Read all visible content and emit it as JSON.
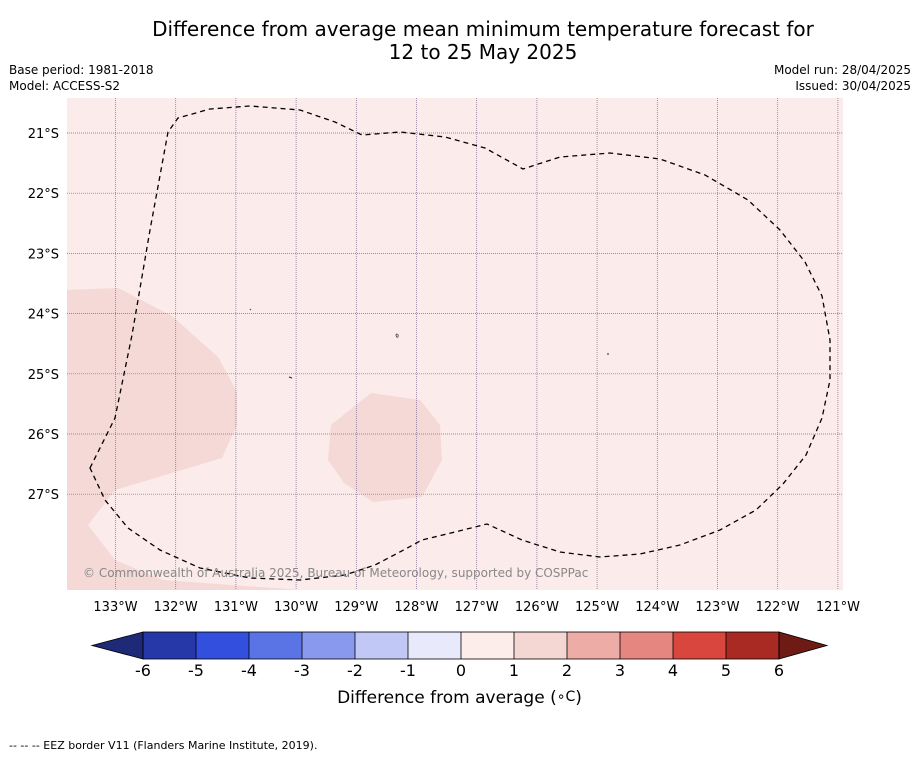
{
  "title": {
    "line1": "Difference from average mean minimum temperature forecast for",
    "line2": "12 to 25 May 2025"
  },
  "meta": {
    "base_period": "Base period: 1981-2018",
    "model": "Model: ACCESS-S2",
    "model_run": "Model run: 28/04/2025",
    "issued": "Issued: 30/04/2025"
  },
  "map": {
    "lat_labels": [
      "21°S",
      "22°S",
      "23°S",
      "24°S",
      "25°S",
      "26°S",
      "27°S"
    ],
    "lon_labels": [
      "133°W",
      "132°W",
      "131°W",
      "130°W",
      "129°W",
      "128°W",
      "127°W",
      "126°W",
      "125°W",
      "124°W",
      "123°W",
      "122°W",
      "121°W"
    ],
    "copyright": "© Commonwealth of Australia 2025, Bureau of Meteorology, supported by COSPPac",
    "colors": {
      "background_band": "#fbebea",
      "warm_band": "#f4d9d6",
      "eez_line": "#000000",
      "grid": "#7a6a8a"
    }
  },
  "colorbar": {
    "tick_labels": [
      "-6",
      "-5",
      "-4",
      "-3",
      "-2",
      "-1",
      "0",
      "1",
      "2",
      "3",
      "4",
      "5",
      "6"
    ],
    "colors": [
      "#1e2a78",
      "#2638a8",
      "#3250dd",
      "#5a74e6",
      "#8899ee",
      "#c2c8f5",
      "#e8eafb",
      "#fcedeb",
      "#f4d6d3",
      "#edaca5",
      "#e68680",
      "#d9463d",
      "#a82a23",
      "#6e1a15"
    ],
    "label": "Difference from average (",
    "label_unit": "∘C",
    "label_end": ")"
  },
  "footer": "--  --  -- EEZ border V11 (Flanders Marine Institute, 2019)."
}
